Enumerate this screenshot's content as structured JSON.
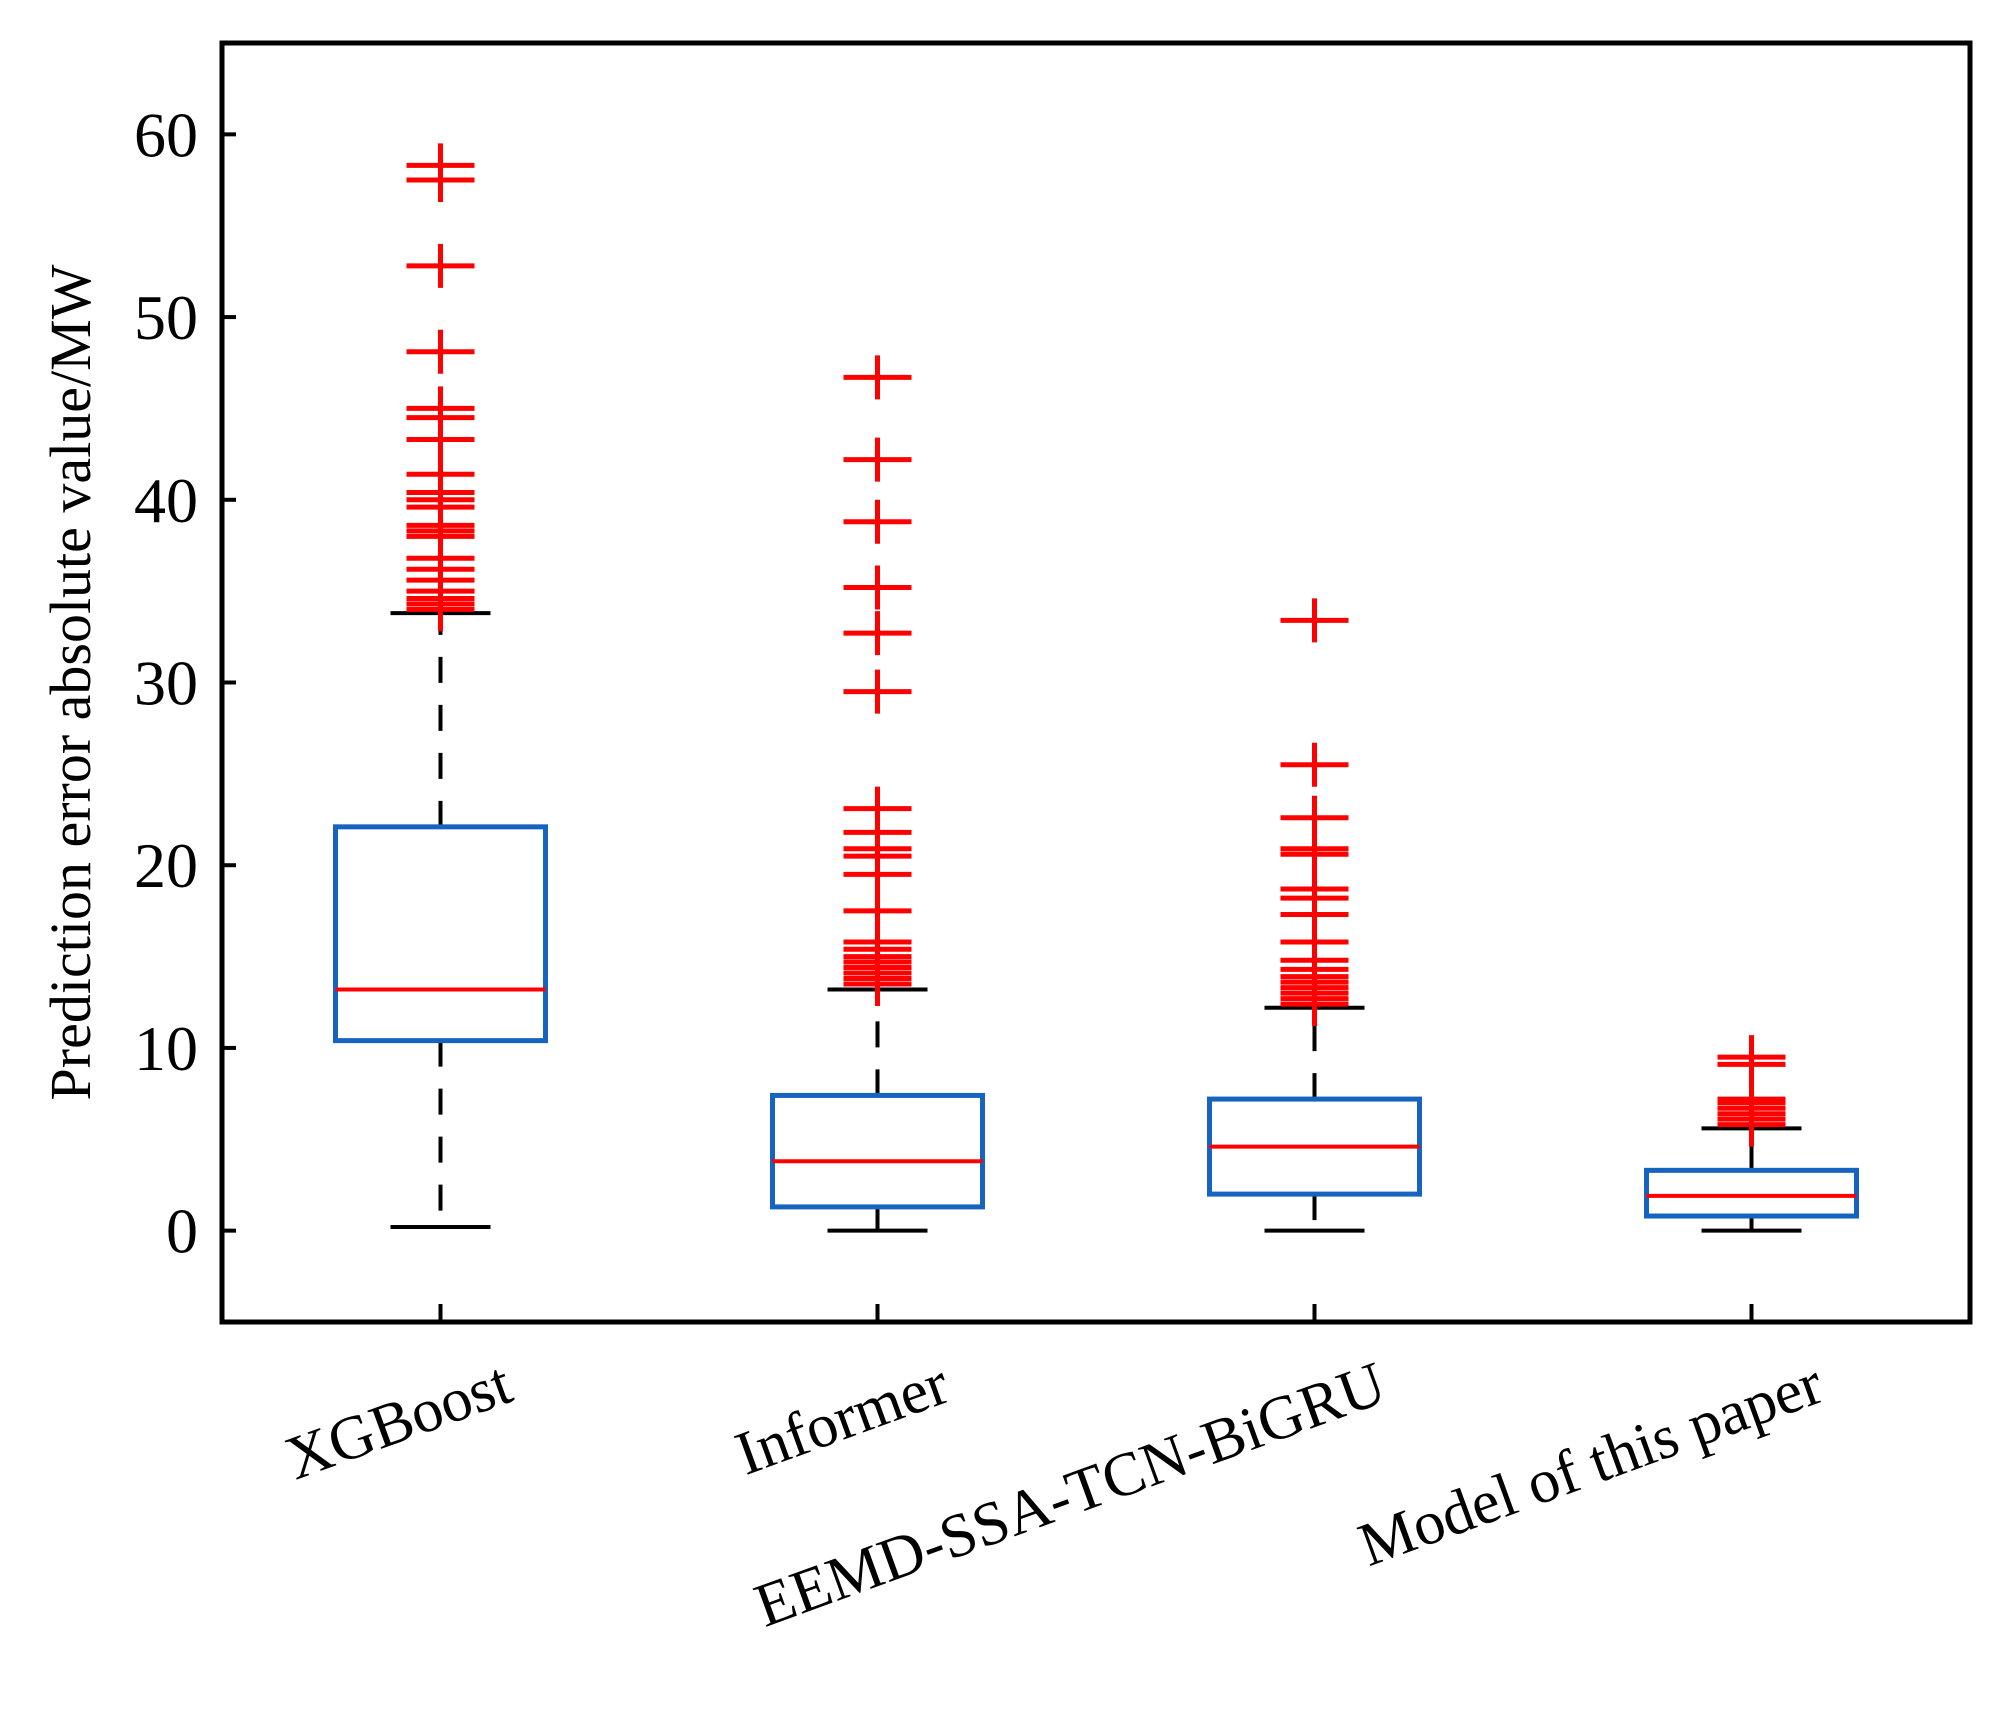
{
  "chart_data": {
    "type": "box",
    "title": "",
    "xlabel": "",
    "ylabel": "Prediction error absolute value/MW",
    "ylim": [
      -5,
      65
    ],
    "yticks": [
      0,
      10,
      20,
      30,
      40,
      50,
      60
    ],
    "grid": false,
    "categories": [
      "XGBoost",
      "Informer",
      "EEMD-SSA-TCN-BiGRU",
      "Model of this paper"
    ],
    "series": [
      {
        "name": "XGBoost",
        "whisker_low": 0.2,
        "q1": 10.4,
        "median": 13.2,
        "q3": 22.1,
        "whisker_high": 33.8,
        "outliers": [
          34.0,
          34.3,
          34.6,
          35.0,
          35.6,
          36.2,
          36.8,
          38.0,
          38.3,
          38.6,
          39.6,
          40.0,
          40.4,
          41.4,
          43.3,
          44.5,
          45.0,
          48.1,
          52.8,
          57.5,
          58.3
        ]
      },
      {
        "name": "Informer",
        "whisker_low": 0.0,
        "q1": 1.3,
        "median": 3.8,
        "q3": 7.4,
        "whisker_high": 13.2,
        "outliers": [
          13.5,
          13.8,
          14.1,
          14.4,
          14.7,
          15.0,
          15.4,
          15.8,
          17.5,
          19.5,
          20.5,
          20.9,
          21.8,
          23.1,
          29.5,
          32.7,
          35.2,
          38.8,
          42.2,
          46.7
        ]
      },
      {
        "name": "EEMD-SSA-TCN-BiGRU",
        "whisker_low": 0.0,
        "q1": 2.0,
        "median": 4.6,
        "q3": 7.2,
        "whisker_high": 12.2,
        "outliers": [
          12.4,
          12.7,
          13.0,
          13.3,
          13.6,
          13.9,
          14.3,
          14.8,
          15.8,
          17.3,
          18.2,
          18.7,
          20.6,
          20.9,
          22.6,
          25.5,
          33.4
        ]
      },
      {
        "name": "Model of this paper",
        "whisker_low": 0.0,
        "q1": 0.8,
        "median": 1.9,
        "q3": 3.3,
        "whisker_high": 5.6,
        "outliers": [
          5.8,
          6.1,
          6.4,
          6.7,
          7.0,
          7.2,
          9.1,
          9.5
        ]
      }
    ],
    "colors": {
      "box": "#1764c0",
      "median": "#ff0000",
      "outlier": "#ff0000",
      "whisker": "#000000",
      "axis": "#000000"
    }
  }
}
